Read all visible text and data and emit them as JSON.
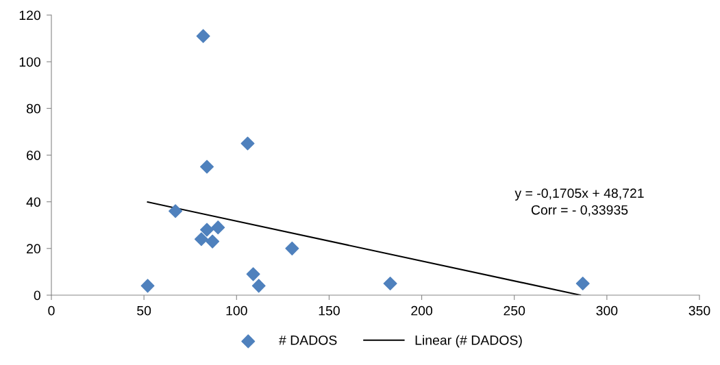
{
  "chart_data": {
    "type": "scatter",
    "xlim": [
      0,
      350
    ],
    "xticks": [
      0,
      50,
      100,
      150,
      200,
      250,
      300,
      350
    ],
    "ylim": [
      0,
      120
    ],
    "yticks": [
      0,
      20,
      40,
      60,
      80,
      100,
      120
    ],
    "grid": false,
    "legend": "bottom",
    "marker": "diamond",
    "series": [
      {
        "name": "# DADOS",
        "color": "#4f81bd",
        "x": [
          82,
          106,
          84,
          67,
          84,
          90,
          81,
          87,
          130,
          109,
          112,
          52,
          183,
          287
        ],
        "values": [
          111,
          65,
          55,
          36,
          28,
          29,
          24,
          23,
          20,
          9,
          4,
          4,
          5,
          5
        ]
      },
      {
        "name": "Linear (# DADOS)",
        "type": "line",
        "color": "#000000",
        "marker": "none",
        "line_style": "solid",
        "x": [
          52,
          285.7
        ],
        "values": [
          39.9,
          0
        ]
      }
    ],
    "annotations": [
      "y = -0,1705x + 48,721\nCorr = - 0,33935"
    ]
  }
}
